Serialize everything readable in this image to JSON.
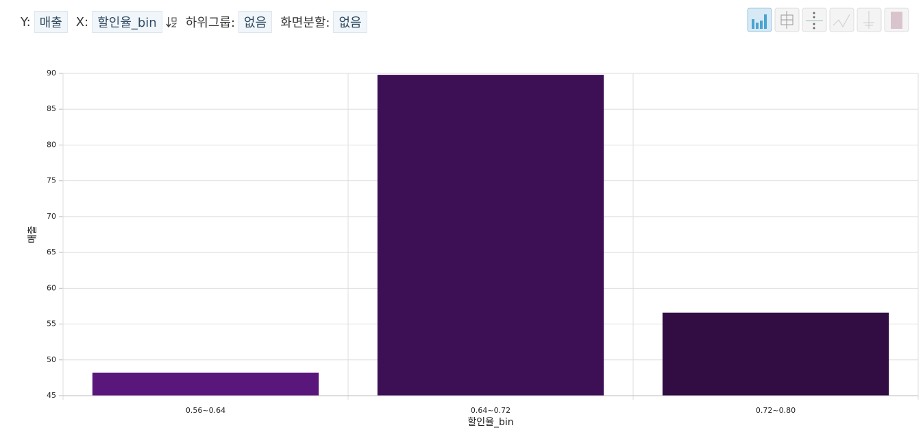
{
  "controls": {
    "y_label": "Y:",
    "y_value": "매출",
    "x_label": "X:",
    "x_value": "할인율_bin",
    "subgroup_label": "하위그룹:",
    "subgroup_value": "없음",
    "split_label": "화면분할:",
    "split_value": "없음"
  },
  "chart_data": {
    "type": "bar",
    "x_label": "할인율_bin",
    "y_label": "매출",
    "categories": [
      "0.56~0.64",
      "0.64~0.72",
      "0.72~0.80"
    ],
    "values": [
      48.2,
      89.8,
      56.6
    ],
    "colors": [
      "#5a177b",
      "#3d1056",
      "#310d43"
    ],
    "ylim": [
      45,
      90
    ],
    "yticks": [
      45,
      50,
      55,
      60,
      65,
      70,
      75,
      80,
      85,
      90
    ],
    "grid": true
  }
}
